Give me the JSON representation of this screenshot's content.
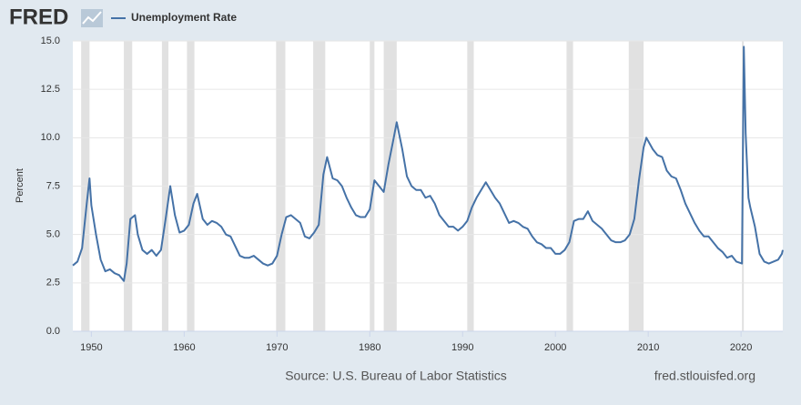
{
  "chart_data": {
    "type": "line",
    "logo": "FRED",
    "ylabel": "Percent",
    "source": "Source: U.S. Bureau of Labor Statistics",
    "site": "fred.stlouisfed.org",
    "xlim": [
      1948,
      2024.5
    ],
    "ylim": [
      0,
      15
    ],
    "xticks": [
      1950,
      1960,
      1970,
      1980,
      1990,
      2000,
      2010,
      2020
    ],
    "yticks": [
      {
        "value": 0,
        "label": "0.0"
      },
      {
        "value": 2.5,
        "label": "2.5"
      },
      {
        "value": 5,
        "label": "5.0"
      },
      {
        "value": 7.5,
        "label": "7.5"
      },
      {
        "value": 10,
        "label": "10.0"
      },
      {
        "value": 12.5,
        "label": "12.5"
      },
      {
        "value": 15,
        "label": "15.0"
      }
    ],
    "grid": true,
    "recession_color": "#e1e1e1",
    "recessions": [
      [
        1948.9,
        1949.8
      ],
      [
        1953.5,
        1954.4
      ],
      [
        1957.6,
        1958.3
      ],
      [
        1960.3,
        1961.1
      ],
      [
        1969.9,
        1970.9
      ],
      [
        1973.9,
        1975.2
      ],
      [
        1980.0,
        1980.5
      ],
      [
        1981.5,
        1982.9
      ],
      [
        1990.5,
        1991.2
      ],
      [
        2001.2,
        2001.9
      ],
      [
        2007.9,
        2009.5
      ],
      [
        2020.1,
        2020.3
      ]
    ],
    "x": [
      1948.0,
      1948.5,
      1949.0,
      1949.5,
      1949.8,
      1950.0,
      1950.5,
      1951.0,
      1951.5,
      1952.0,
      1952.5,
      1953.0,
      1953.5,
      1953.8,
      1954.2,
      1954.7,
      1955.0,
      1955.5,
      1956.0,
      1956.5,
      1957.0,
      1957.5,
      1958.0,
      1958.5,
      1959.0,
      1959.5,
      1960.0,
      1960.5,
      1961.0,
      1961.4,
      1962.0,
      1962.5,
      1963.0,
      1963.5,
      1964.0,
      1964.5,
      1965.0,
      1965.5,
      1966.0,
      1966.5,
      1967.0,
      1967.5,
      1968.0,
      1968.5,
      1969.0,
      1969.5,
      1970.0,
      1970.5,
      1971.0,
      1971.5,
      1972.0,
      1972.5,
      1973.0,
      1973.5,
      1974.0,
      1974.5,
      1975.0,
      1975.4,
      1976.0,
      1976.5,
      1977.0,
      1977.5,
      1978.0,
      1978.5,
      1979.0,
      1979.5,
      1980.0,
      1980.5,
      1981.0,
      1981.5,
      1982.0,
      1982.5,
      1982.9,
      1983.5,
      1984.0,
      1984.5,
      1985.0,
      1985.5,
      1986.0,
      1986.5,
      1987.0,
      1987.5,
      1988.0,
      1988.5,
      1989.0,
      1989.5,
      1990.0,
      1990.5,
      1991.0,
      1991.5,
      1992.0,
      1992.5,
      1993.0,
      1993.5,
      1994.0,
      1994.5,
      1995.0,
      1995.5,
      1996.0,
      1996.5,
      1997.0,
      1997.5,
      1998.0,
      1998.5,
      1999.0,
      1999.5,
      2000.0,
      2000.5,
      2001.0,
      2001.5,
      2002.0,
      2002.5,
      2003.0,
      2003.5,
      2004.0,
      2004.5,
      2005.0,
      2005.5,
      2006.0,
      2006.5,
      2007.0,
      2007.5,
      2008.0,
      2008.5,
      2009.0,
      2009.5,
      2009.8,
      2010.5,
      2011.0,
      2011.5,
      2012.0,
      2012.5,
      2013.0,
      2013.5,
      2014.0,
      2014.5,
      2015.0,
      2015.5,
      2016.0,
      2016.5,
      2017.0,
      2017.5,
      2018.0,
      2018.5,
      2019.0,
      2019.5,
      2020.1,
      2020.3,
      2020.5,
      2020.8,
      2021.0,
      2021.5,
      2022.0,
      2022.5,
      2023.0,
      2023.5,
      2024.0,
      2024.4,
      2024.5
    ],
    "series": [
      {
        "name": "Unemployment Rate",
        "color": "#4572a7",
        "values": [
          3.4,
          3.6,
          4.3,
          6.6,
          7.9,
          6.5,
          5.0,
          3.7,
          3.1,
          3.2,
          3.0,
          2.9,
          2.6,
          3.5,
          5.8,
          6.0,
          5.0,
          4.2,
          4.0,
          4.2,
          3.9,
          4.2,
          5.8,
          7.5,
          6.0,
          5.1,
          5.2,
          5.5,
          6.6,
          7.1,
          5.8,
          5.5,
          5.7,
          5.6,
          5.4,
          5.0,
          4.9,
          4.4,
          3.9,
          3.8,
          3.8,
          3.9,
          3.7,
          3.5,
          3.4,
          3.5,
          3.9,
          5.0,
          5.9,
          6.0,
          5.8,
          5.6,
          4.9,
          4.8,
          5.1,
          5.5,
          8.1,
          9.0,
          7.9,
          7.8,
          7.5,
          6.9,
          6.4,
          6.0,
          5.9,
          5.9,
          6.3,
          7.8,
          7.5,
          7.2,
          8.6,
          9.8,
          10.8,
          9.4,
          8.0,
          7.5,
          7.3,
          7.3,
          6.9,
          7.0,
          6.6,
          6.0,
          5.7,
          5.4,
          5.4,
          5.2,
          5.4,
          5.7,
          6.4,
          6.9,
          7.3,
          7.7,
          7.3,
          6.9,
          6.6,
          6.1,
          5.6,
          5.7,
          5.6,
          5.4,
          5.3,
          4.9,
          4.6,
          4.5,
          4.3,
          4.3,
          4.0,
          4.0,
          4.2,
          4.6,
          5.7,
          5.8,
          5.8,
          6.2,
          5.7,
          5.5,
          5.3,
          5.0,
          4.7,
          4.6,
          4.6,
          4.7,
          5.0,
          5.8,
          7.8,
          9.5,
          10.0,
          9.4,
          9.1,
          9.0,
          8.3,
          8.0,
          7.9,
          7.3,
          6.6,
          6.1,
          5.6,
          5.2,
          4.9,
          4.9,
          4.6,
          4.3,
          4.1,
          3.8,
          3.9,
          3.6,
          3.5,
          14.7,
          10.2,
          6.9,
          6.4,
          5.4,
          4.0,
          3.6,
          3.5,
          3.6,
          3.7,
          4.0,
          4.2
        ]
      }
    ]
  }
}
